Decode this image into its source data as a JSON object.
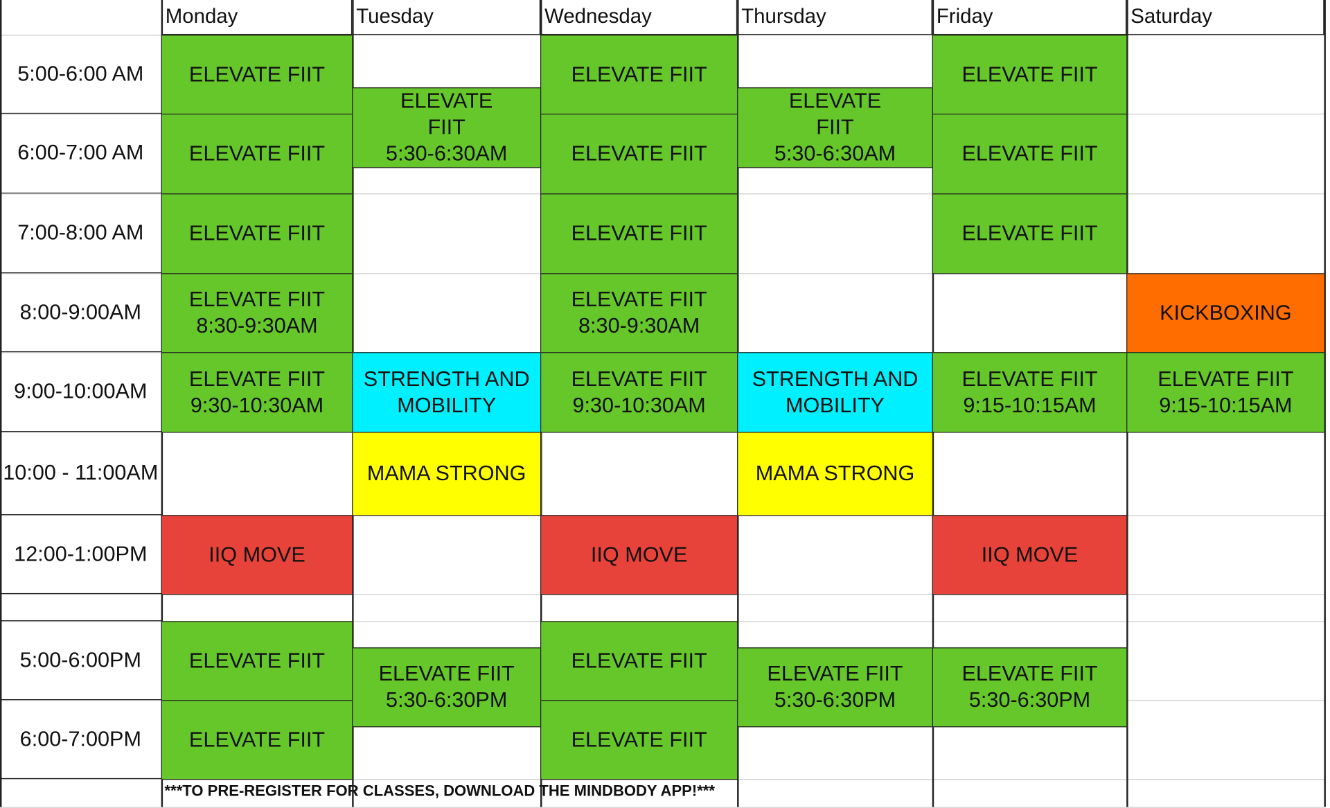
{
  "colors": {
    "green": "#66c72a",
    "cyan": "#00f0ff",
    "yellow": "#ffff00",
    "red": "#e8433a",
    "orange": "#ff6d00"
  },
  "days": [
    "Monday",
    "Tuesday",
    "Wednesday",
    "Thursday",
    "Friday",
    "Saturday"
  ],
  "times": [
    "5:00-6:00 AM",
    "6:00-7:00 AM",
    "7:00-8:00 AM",
    "8:00-9:00AM",
    "9:00-10:00AM",
    "10:00 - 11:00AM",
    "12:00-1:00PM",
    "",
    "5:00-6:00PM",
    "6:00-7:00PM"
  ],
  "classes": [
    {
      "day": "Monday",
      "text": "ELEVATE FIIT",
      "color": "green"
    },
    {
      "day": "Monday",
      "text": "ELEVATE FIIT",
      "color": "green"
    },
    {
      "day": "Monday",
      "text": "ELEVATE FIIT",
      "color": "green"
    },
    {
      "day": "Monday",
      "text": "ELEVATE FIIT\n8:30-9:30AM",
      "color": "green"
    },
    {
      "day": "Monday",
      "text": "ELEVATE FIIT\n9:30-10:30AM",
      "color": "green"
    },
    {
      "day": "Monday",
      "text": "IIQ MOVE",
      "color": "red"
    },
    {
      "day": "Monday",
      "text": "ELEVATE FIIT",
      "color": "green"
    },
    {
      "day": "Monday",
      "text": "ELEVATE FIIT",
      "color": "green"
    },
    {
      "day": "Tuesday",
      "text": "ELEVATE\nFIIT\n5:30-6:30AM",
      "color": "green"
    },
    {
      "day": "Tuesday",
      "text": "STRENGTH AND\nMOBILITY",
      "color": "cyan"
    },
    {
      "day": "Tuesday",
      "text": "MAMA STRONG",
      "color": "yellow"
    },
    {
      "day": "Tuesday",
      "text": "ELEVATE FIIT\n5:30-6:30PM",
      "color": "green"
    },
    {
      "day": "Wednesday",
      "text": "ELEVATE FIIT",
      "color": "green"
    },
    {
      "day": "Wednesday",
      "text": "ELEVATE FIIT",
      "color": "green"
    },
    {
      "day": "Wednesday",
      "text": "ELEVATE FIIT",
      "color": "green"
    },
    {
      "day": "Wednesday",
      "text": "ELEVATE FIIT\n8:30-9:30AM",
      "color": "green"
    },
    {
      "day": "Wednesday",
      "text": "ELEVATE FIIT\n9:30-10:30AM",
      "color": "green"
    },
    {
      "day": "Wednesday",
      "text": "IIQ MOVE",
      "color": "red"
    },
    {
      "day": "Wednesday",
      "text": "ELEVATE FIIT",
      "color": "green"
    },
    {
      "day": "Wednesday",
      "text": "ELEVATE FIIT",
      "color": "green"
    },
    {
      "day": "Thursday",
      "text": "ELEVATE\nFIIT\n5:30-6:30AM",
      "color": "green"
    },
    {
      "day": "Thursday",
      "text": "STRENGTH AND\nMOBILITY",
      "color": "cyan"
    },
    {
      "day": "Thursday",
      "text": "MAMA STRONG",
      "color": "yellow"
    },
    {
      "day": "Thursday",
      "text": "ELEVATE FIIT\n5:30-6:30PM",
      "color": "green"
    },
    {
      "day": "Friday",
      "text": "ELEVATE FIIT",
      "color": "green"
    },
    {
      "day": "Friday",
      "text": "ELEVATE FIIT",
      "color": "green"
    },
    {
      "day": "Friday",
      "text": "ELEVATE FIIT",
      "color": "green"
    },
    {
      "day": "Friday",
      "text": "ELEVATE FIIT\n9:15-10:15AM",
      "color": "green"
    },
    {
      "day": "Friday",
      "text": "IIQ MOVE",
      "color": "red"
    },
    {
      "day": "Friday",
      "text": "ELEVATE FIIT\n5:30-6:30PM",
      "color": "green"
    },
    {
      "day": "Saturday",
      "text": "KICKBOXING",
      "color": "orange"
    },
    {
      "day": "Saturday",
      "text": "ELEVATE FIIT\n9:15-10:15AM",
      "color": "green"
    }
  ],
  "footer": "***TO PRE-REGISTER FOR CLASSES, DOWNLOAD THE MINDBODY APP!***"
}
